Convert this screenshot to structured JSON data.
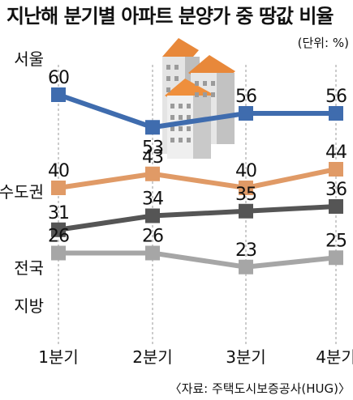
{
  "chart_data": {
    "type": "line",
    "title": "지난해 분기별 아파트 분양가 중 땅값 비율",
    "unit": "(단위: %)",
    "source": "〈자료: 주택도시보증공사(HUG)〉",
    "categories": [
      "1분기",
      "2분기",
      "3분기",
      "4분기"
    ],
    "series": [
      {
        "name": "서울",
        "values": [
          60,
          53,
          56,
          56
        ],
        "color": "#3f6cae"
      },
      {
        "name": "수도권",
        "values": [
          40,
          43,
          40,
          44
        ],
        "color": "#e09a66"
      },
      {
        "name": "전국",
        "values": [
          31,
          34,
          35,
          36
        ],
        "color": "#555555"
      },
      {
        "name": "지방",
        "values": [
          26,
          26,
          23,
          25
        ],
        "color": "#a6a6a6"
      }
    ],
    "grid": false,
    "legend": "left-of-lines"
  }
}
